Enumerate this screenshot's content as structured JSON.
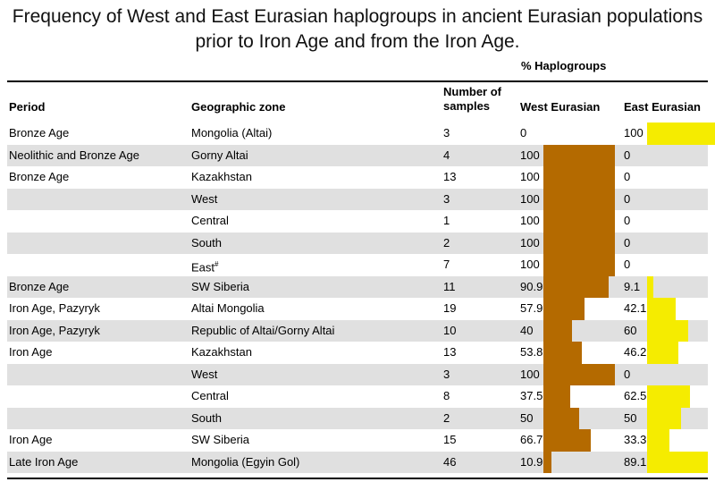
{
  "title": {
    "line1": "Frequency of West and East Eurasian haplogroups in ancient Eurasian populations",
    "line2": "prior to Iron Age and from the Iron Age."
  },
  "columns": {
    "haplogroups_group": "% Haplogroups",
    "period": "Period",
    "zone": "Geographic zone",
    "samples_line1": "Number of",
    "samples_line2": "samples",
    "west": "West Eurasian",
    "east": "East Eurasian"
  },
  "colors": {
    "west_bar": "#b46a00",
    "east_bar": "#f5ec00",
    "row_shade": "#e0e0e0"
  },
  "rows": [
    {
      "period": "Bronze Age",
      "zone": "Mongolia (Altai)",
      "samples": "3",
      "west": "0",
      "east": "100",
      "west_pct": 0,
      "east_pct": 100
    },
    {
      "period": "Neolithic and Bronze Age",
      "zone": "Gorny Altai",
      "samples": "4",
      "west": "100",
      "east": "0",
      "west_pct": 100,
      "east_pct": 0
    },
    {
      "period": "Bronze Age",
      "zone": "Kazakhstan",
      "samples": "13",
      "west": "100",
      "east": "0",
      "west_pct": 100,
      "east_pct": 0
    },
    {
      "period": "",
      "zone": "West",
      "samples": "3",
      "west": "100",
      "east": "0",
      "west_pct": 100,
      "east_pct": 0
    },
    {
      "period": "",
      "zone": "Central",
      "samples": "1",
      "west": "100",
      "east": "0",
      "west_pct": 100,
      "east_pct": 0
    },
    {
      "period": "",
      "zone": "South",
      "samples": "2",
      "west": "100",
      "east": "0",
      "west_pct": 100,
      "east_pct": 0
    },
    {
      "period": "",
      "zone": "East",
      "zone_sup": "#",
      "samples": "7",
      "west": "100",
      "east": "0",
      "west_pct": 100,
      "east_pct": 0
    },
    {
      "period": "Bronze Age",
      "zone": "SW Siberia",
      "samples": "11",
      "west": "90.9",
      "east": "9.1",
      "west_pct": 90.9,
      "east_pct": 9.1
    },
    {
      "period": "Iron Age, Pazyryk",
      "zone": "Altai Mongolia",
      "samples": "19",
      "west": "57.9",
      "east": "42.1",
      "west_pct": 57.9,
      "east_pct": 42.1
    },
    {
      "period": "Iron Age, Pazyryk",
      "zone": "Republic of Altai/Gorny Altai",
      "samples": "10",
      "west": "40",
      "east": "60",
      "west_pct": 40,
      "east_pct": 60
    },
    {
      "period": "Iron Age",
      "zone": "Kazakhstan",
      "samples": "13",
      "west": "53.8",
      "east": "46.2",
      "west_pct": 53.8,
      "east_pct": 46.2
    },
    {
      "period": "",
      "zone": "West",
      "samples": "3",
      "west": "100",
      "east": "0",
      "west_pct": 100,
      "east_pct": 0
    },
    {
      "period": "",
      "zone": "Central",
      "samples": "8",
      "west": "37.5",
      "east": "62.5",
      "west_pct": 37.5,
      "east_pct": 62.5
    },
    {
      "period": "",
      "zone": "South",
      "samples": "2",
      "west": "50",
      "east": "50",
      "west_pct": 50,
      "east_pct": 50
    },
    {
      "period": "Iron Age",
      "zone": "SW Siberia",
      "samples": "15",
      "west": "66.7",
      "east": "33.3",
      "west_pct": 66.7,
      "east_pct": 33.3
    },
    {
      "period": "Late Iron Age",
      "zone": "Mongolia (Egyin Gol)",
      "samples": "46",
      "west": "10.9",
      "east": "89.1",
      "west_pct": 10.9,
      "east_pct": 89.1
    }
  ]
}
